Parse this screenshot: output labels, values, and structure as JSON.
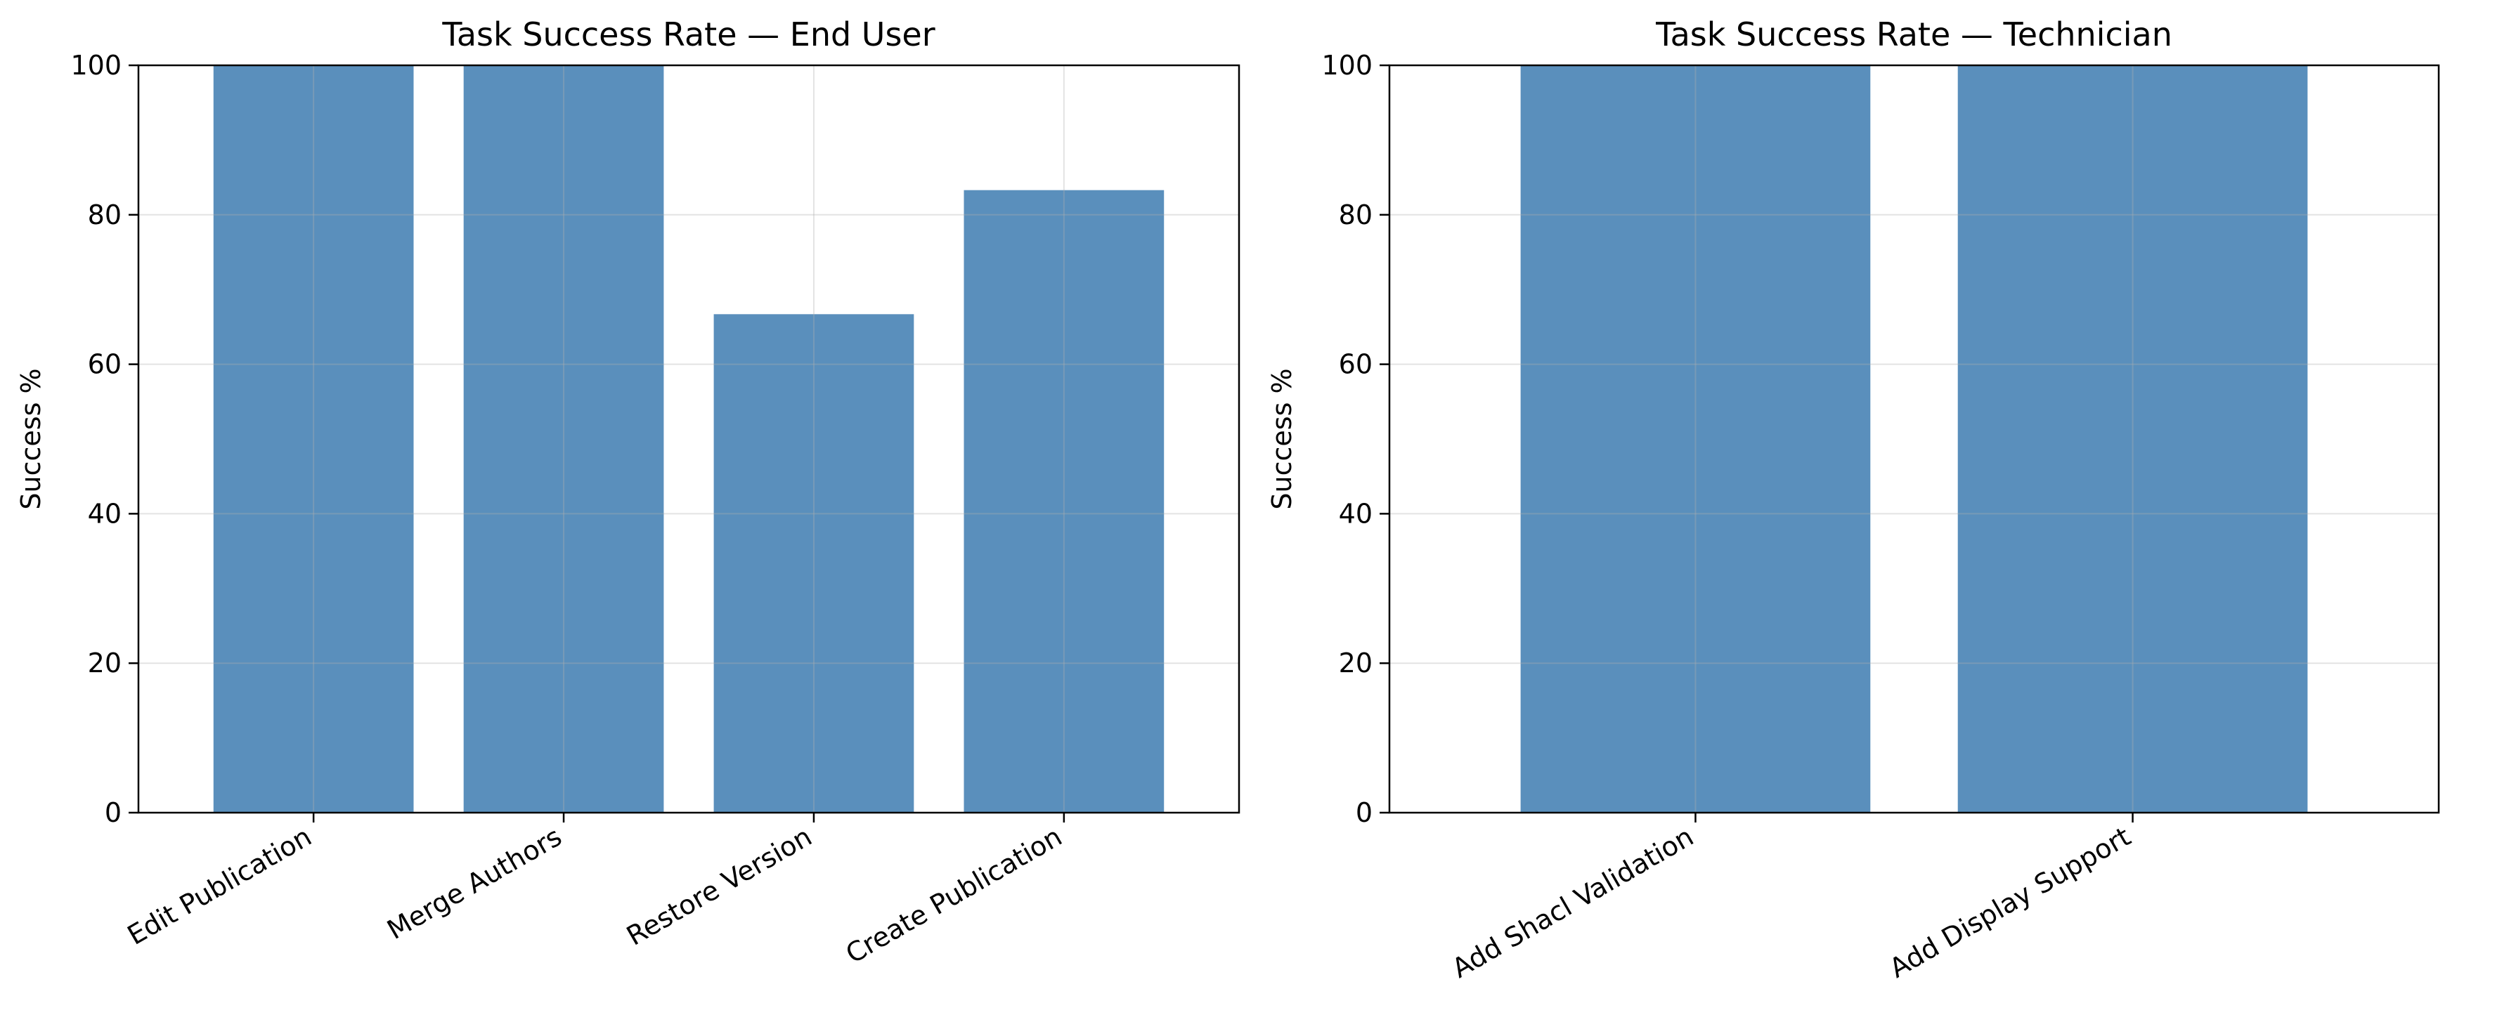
{
  "chart_data": [
    {
      "type": "bar",
      "title": "Task Success Rate — End User",
      "xlabel": "",
      "ylabel": "Success %",
      "ylim": [
        0,
        100
      ],
      "yticks": [
        0,
        20,
        40,
        60,
        80,
        100
      ],
      "grid": true,
      "categories": [
        "Edit Publication",
        "Merge Authors",
        "Restore Version",
        "Create Publication"
      ],
      "values": [
        100,
        100,
        66.7,
        83.3
      ],
      "color": "#5a8fbc"
    },
    {
      "type": "bar",
      "title": "Task Success Rate — Technician",
      "xlabel": "",
      "ylabel": "Success %",
      "ylim": [
        0,
        100
      ],
      "yticks": [
        0,
        20,
        40,
        60,
        80,
        100
      ],
      "grid": true,
      "categories": [
        "Add Shacl Validation",
        "Add Display Support"
      ],
      "values": [
        100,
        100
      ],
      "color": "#5a8fbc"
    }
  ]
}
